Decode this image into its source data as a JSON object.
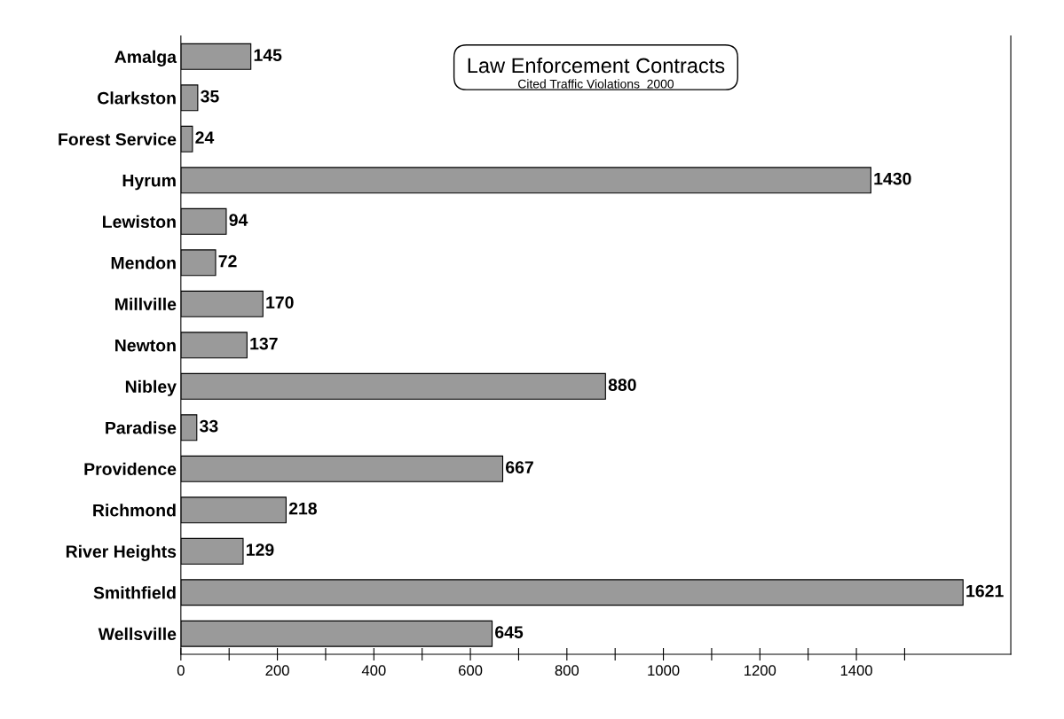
{
  "chart_data": {
    "type": "bar",
    "orientation": "horizontal",
    "title": "Law Enforcement Contracts",
    "subtitle": "Cited Traffic Violations  2000",
    "categories": [
      "Amalga",
      "Clarkston",
      "Forest Service",
      "Hyrum",
      "Lewiston",
      "Mendon",
      "Millville",
      "Newton",
      "Nibley",
      "Paradise",
      "Providence",
      "Richmond",
      "River Heights",
      "Smithfield",
      "Wellsville"
    ],
    "values": [
      145,
      35,
      24,
      1430,
      94,
      72,
      170,
      137,
      880,
      33,
      667,
      218,
      129,
      1621,
      645
    ],
    "color": "#9a9a9a",
    "data_labels": true,
    "grid": false,
    "legend": false,
    "xlim": [
      0,
      1720
    ],
    "xticks": [
      0,
      {
        "value": 100,
        "label": null
      },
      200,
      {
        "value": 300,
        "label": null
      },
      400,
      {
        "value": 500,
        "label": null
      },
      600,
      {
        "value": 700,
        "label": null
      },
      800,
      {
        "value": 900,
        "label": null
      },
      1000,
      {
        "value": 1100,
        "label": null
      },
      1200,
      {
        "value": 1300,
        "label": null
      },
      1400,
      {
        "value": 1500,
        "label": null
      }
    ]
  }
}
